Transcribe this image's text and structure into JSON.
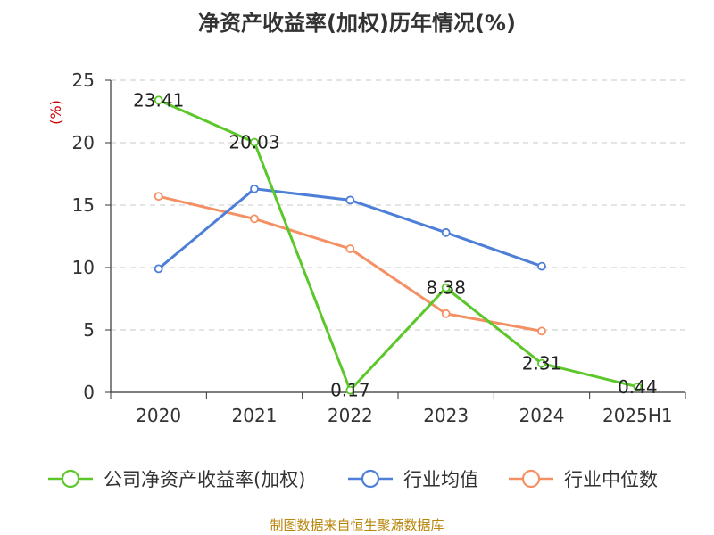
{
  "chart_data": {
    "type": "line",
    "title": "净资产收益率(加权)历年情况(%)",
    "unit_label": "(%)",
    "categories": [
      "2020",
      "2021",
      "2022",
      "2023",
      "2024",
      "2025H1"
    ],
    "ylim": [
      0,
      25
    ],
    "yticks": [
      0,
      5,
      10,
      15,
      20,
      25
    ],
    "grid": true,
    "legend_position": "bottom",
    "series": [
      {
        "name": "公司净资产收益率(加权)",
        "color": "#5cc72a",
        "values": [
          23.41,
          20.03,
          0.17,
          8.38,
          2.31,
          0.44
        ],
        "labels": [
          "23.41",
          "20.03",
          "0.17",
          "8.38",
          "2.31",
          "0.44"
        ]
      },
      {
        "name": "行业均值",
        "color": "#4e7fd8",
        "values": [
          9.9,
          16.3,
          15.4,
          12.8,
          10.1,
          null
        ]
      },
      {
        "name": "行业中位数",
        "color": "#f59064",
        "values": [
          15.7,
          13.9,
          11.5,
          6.3,
          4.9,
          null
        ]
      }
    ]
  },
  "footer": {
    "source": "制图数据来自恒生聚源数据库"
  }
}
